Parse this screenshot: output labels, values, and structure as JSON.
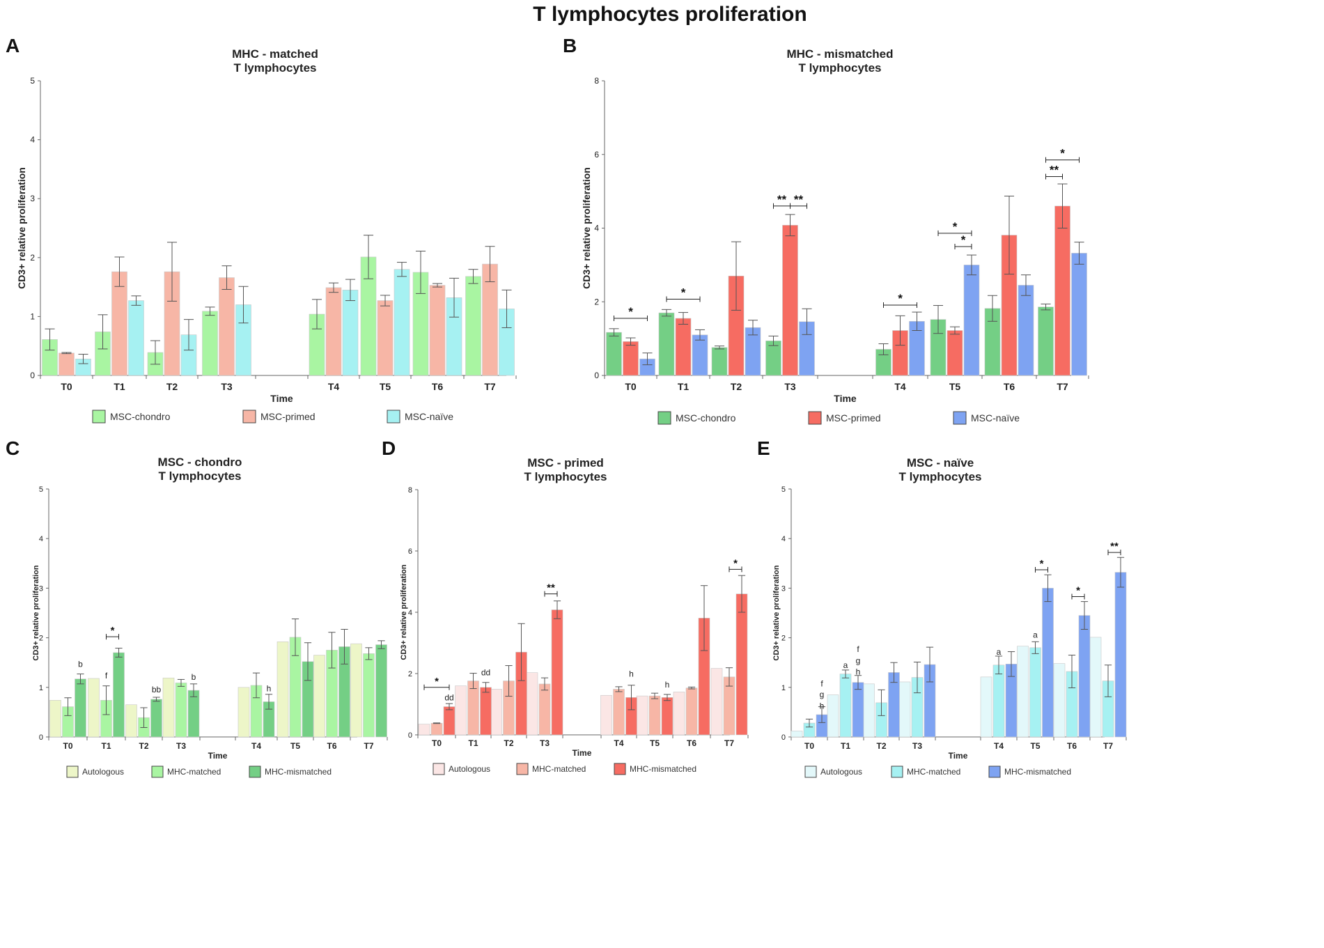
{
  "figure_title": "T lymphocytes proliferation",
  "chart_data": [
    {
      "panel": "A",
      "type": "bar",
      "title": [
        "MHC - matched",
        "T lymphocytes"
      ],
      "xlabel": "Time",
      "ylabel": "CD3+ relative proliferation",
      "ylim": [
        0,
        5
      ],
      "yticks": [
        0,
        1,
        2,
        3,
        4,
        5
      ],
      "categories": [
        "T0",
        "T1",
        "T2",
        "T3",
        "T4",
        "T5",
        "T6",
        "T7"
      ],
      "colors": [
        "#a9f5a2",
        "#f7b6a6",
        "#a6f1f2"
      ],
      "series": [
        {
          "name": "MSC-chondro",
          "values": [
            0.61,
            0.74,
            0.39,
            1.09,
            1.04,
            2.01,
            1.75,
            1.68
          ],
          "errors": [
            0.18,
            0.29,
            0.2,
            0.07,
            0.25,
            0.37,
            0.36,
            0.12
          ]
        },
        {
          "name": "MSC-primed",
          "values": [
            0.38,
            1.76,
            1.76,
            1.66,
            1.49,
            1.27,
            1.53,
            1.89
          ],
          "errors": [
            0.01,
            0.25,
            0.5,
            0.2,
            0.08,
            0.09,
            0.03,
            0.3
          ]
        },
        {
          "name": "MSC-naïve",
          "values": [
            0.28,
            1.27,
            0.69,
            1.2,
            1.45,
            1.8,
            1.32,
            1.13
          ],
          "errors": [
            0.08,
            0.08,
            0.26,
            0.31,
            0.18,
            0.12,
            0.33,
            0.32
          ]
        }
      ],
      "annotations": []
    },
    {
      "panel": "B",
      "type": "bar",
      "title": [
        "MHC - mismatched",
        "T lymphocytes"
      ],
      "xlabel": "Time",
      "ylabel": "CD3+ relative proliferation",
      "ylim": [
        0,
        8
      ],
      "yticks": [
        0,
        2,
        4,
        6,
        8
      ],
      "categories": [
        "T0",
        "T1",
        "T2",
        "T3",
        "T4",
        "T5",
        "T6",
        "T7"
      ],
      "colors": [
        "#74cf85",
        "#f66c62",
        "#7ea3f2"
      ],
      "series": [
        {
          "name": "MSC-chondro",
          "values": [
            1.17,
            1.7,
            0.76,
            0.94,
            0.71,
            1.52,
            1.82,
            1.86
          ],
          "errors": [
            0.1,
            0.09,
            0.04,
            0.13,
            0.15,
            0.38,
            0.35,
            0.08
          ]
        },
        {
          "name": "MSC-primed",
          "values": [
            0.92,
            1.55,
            2.7,
            4.08,
            1.22,
            1.22,
            3.81,
            4.6
          ],
          "errors": [
            0.1,
            0.16,
            0.93,
            0.29,
            0.4,
            0.1,
            1.06,
            0.6
          ]
        },
        {
          "name": "MSC-naïve",
          "values": [
            0.45,
            1.1,
            1.3,
            1.46,
            1.47,
            3.0,
            2.45,
            3.32
          ],
          "errors": [
            0.16,
            0.14,
            0.2,
            0.35,
            0.25,
            0.27,
            0.28,
            0.3
          ]
        }
      ],
      "annotations": [
        {
          "label": "*",
          "from": [
            0,
            0
          ],
          "to": [
            0,
            2
          ],
          "y": 1.55
        },
        {
          "label": "*",
          "from": [
            1,
            0
          ],
          "to": [
            1,
            2
          ],
          "y": 2.07
        },
        {
          "label": "**",
          "from": [
            3,
            0
          ],
          "to": [
            3,
            1
          ],
          "y": 4.6
        },
        {
          "label": "**",
          "from": [
            3,
            1
          ],
          "to": [
            3,
            2
          ],
          "y": 4.6
        },
        {
          "label": "*",
          "from": [
            4,
            0
          ],
          "to": [
            4,
            2
          ],
          "y": 1.91
        },
        {
          "label": "*",
          "from": [
            5,
            0
          ],
          "to": [
            5,
            2
          ],
          "y": 3.86
        },
        {
          "label": "*",
          "from": [
            5,
            1
          ],
          "to": [
            5,
            2
          ],
          "y": 3.5
        },
        {
          "label": "**",
          "from": [
            7,
            0
          ],
          "to": [
            7,
            1
          ],
          "y": 5.4
        },
        {
          "label": "*",
          "from": [
            7,
            0
          ],
          "to": [
            7,
            2
          ],
          "y": 5.85
        }
      ]
    },
    {
      "panel": "C",
      "type": "bar",
      "title": [
        "MSC - chondro",
        "T lymphocytes"
      ],
      "xlabel": "Time",
      "ylabel": "CD3+ relative proliferation",
      "ylim": [
        0,
        5
      ],
      "yticks": [
        0,
        1,
        2,
        3,
        4,
        5
      ],
      "categories": [
        "T0",
        "T1",
        "T2",
        "T3",
        "T4",
        "T5",
        "T6",
        "T7"
      ],
      "colors": [
        "#edf6c8",
        "#a9f5a2",
        "#74cf85"
      ],
      "series": [
        {
          "name": "Autologous",
          "values": [
            0.74,
            1.18,
            0.65,
            1.19,
            1.0,
            1.92,
            1.65,
            1.88
          ],
          "errors": [
            0,
            0,
            0,
            0,
            0,
            0,
            0,
            0
          ]
        },
        {
          "name": "MHC-matched",
          "values": [
            0.61,
            0.74,
            0.39,
            1.09,
            1.04,
            2.01,
            1.75,
            1.68
          ],
          "errors": [
            0.18,
            0.29,
            0.2,
            0.07,
            0.25,
            0.37,
            0.36,
            0.12
          ]
        },
        {
          "name": "MHC-mismatched",
          "values": [
            1.17,
            1.7,
            0.76,
            0.94,
            0.71,
            1.52,
            1.82,
            1.86
          ],
          "errors": [
            0.1,
            0.09,
            0.04,
            0.13,
            0.15,
            0.38,
            0.35,
            0.08
          ]
        }
      ],
      "annotations": [
        {
          "label": "*",
          "from": [
            1,
            1
          ],
          "to": [
            1,
            2
          ],
          "y": 2.02
        },
        {
          "type": "text",
          "label": "b",
          "cat": 0,
          "ser": 2,
          "y": 1.41
        },
        {
          "type": "text",
          "label": "f",
          "cat": 1,
          "ser": 1,
          "y": 1.18
        },
        {
          "type": "text",
          "label": "bb",
          "cat": 2,
          "ser": 2,
          "y": 0.9
        },
        {
          "type": "text",
          "label": "b",
          "cat": 3,
          "ser": 2,
          "y": 1.15
        },
        {
          "type": "text",
          "label": "h",
          "cat": 4,
          "ser": 2,
          "y": 0.92
        }
      ]
    },
    {
      "panel": "D",
      "type": "bar",
      "title": [
        "MSC - primed",
        "T lymphocytes"
      ],
      "xlabel": "Time",
      "ylabel": "CD3+ relative proliferation",
      "ylim": [
        0,
        8
      ],
      "yticks": [
        0,
        2,
        4,
        6,
        8
      ],
      "categories": [
        "T0",
        "T1",
        "T2",
        "T3",
        "T4",
        "T5",
        "T6",
        "T7"
      ],
      "colors": [
        "#fbe6e5",
        "#f7b6a6",
        "#f66c62"
      ],
      "series": [
        {
          "name": "Autologous",
          "values": [
            0.35,
            1.6,
            1.49,
            2.03,
            1.29,
            1.27,
            1.4,
            2.17
          ],
          "errors": [
            0,
            0,
            0,
            0,
            0,
            0,
            0,
            0
          ]
        },
        {
          "name": "MHC-matched",
          "values": [
            0.38,
            1.76,
            1.76,
            1.66,
            1.49,
            1.27,
            1.53,
            1.89
          ],
          "errors": [
            0.01,
            0.25,
            0.5,
            0.2,
            0.08,
            0.09,
            0.03,
            0.3
          ]
        },
        {
          "name": "MHC-mismatched",
          "values": [
            0.92,
            1.55,
            2.7,
            4.08,
            1.22,
            1.22,
            3.81,
            4.6
          ],
          "errors": [
            0.1,
            0.16,
            0.93,
            0.29,
            0.4,
            0.1,
            1.06,
            0.6
          ]
        }
      ],
      "annotations": [
        {
          "label": "*",
          "from": [
            0,
            0
          ],
          "to": [
            0,
            2
          ],
          "y": 1.55
        },
        {
          "label": "**",
          "from": [
            3,
            1
          ],
          "to": [
            3,
            2
          ],
          "y": 4.6
        },
        {
          "label": "*",
          "from": [
            7,
            1
          ],
          "to": [
            7,
            2
          ],
          "y": 5.4
        },
        {
          "type": "text",
          "label": "dd",
          "cat": 0,
          "ser": 2,
          "y": 1.13
        },
        {
          "type": "text",
          "label": "dd",
          "cat": 1,
          "ser": 2,
          "y": 1.94
        },
        {
          "type": "text",
          "label": "h",
          "cat": 4,
          "ser": 2,
          "y": 1.9
        },
        {
          "type": "text",
          "label": "h",
          "cat": 5,
          "ser": 2,
          "y": 1.55
        }
      ]
    },
    {
      "panel": "E",
      "type": "bar",
      "title": [
        "MSC - naïve",
        "T lymphocytes"
      ],
      "xlabel": "Time",
      "ylabel": "CD3+ relative proliferation",
      "ylim": [
        0,
        5
      ],
      "yticks": [
        0,
        1,
        2,
        3,
        4,
        5
      ],
      "categories": [
        "T0",
        "T1",
        "T2",
        "T3",
        "T4",
        "T5",
        "T6",
        "T7"
      ],
      "colors": [
        "#e3f8fa",
        "#a6f1f2",
        "#7ea3f2"
      ],
      "series": [
        {
          "name": "Autologous",
          "values": [
            0.12,
            0.85,
            1.07,
            1.11,
            1.21,
            1.83,
            1.48,
            2.01
          ],
          "errors": [
            0,
            0,
            0,
            0,
            0,
            0,
            0,
            0
          ]
        },
        {
          "name": "MHC-matched",
          "values": [
            0.28,
            1.27,
            0.69,
            1.2,
            1.45,
            1.8,
            1.32,
            1.13
          ],
          "errors": [
            0.08,
            0.08,
            0.26,
            0.31,
            0.18,
            0.12,
            0.33,
            0.32
          ]
        },
        {
          "name": "MHC-mismatched",
          "values": [
            0.45,
            1.1,
            1.3,
            1.46,
            1.47,
            3.0,
            2.45,
            3.32
          ],
          "errors": [
            0.16,
            0.14,
            0.2,
            0.35,
            0.25,
            0.27,
            0.28,
            0.3
          ]
        }
      ],
      "annotations": [
        {
          "label": "*",
          "from": [
            5,
            1
          ],
          "to": [
            5,
            2
          ],
          "y": 3.37
        },
        {
          "label": "*",
          "from": [
            6,
            1
          ],
          "to": [
            6,
            2
          ],
          "y": 2.83
        },
        {
          "label": "**",
          "from": [
            7,
            1
          ],
          "to": [
            7,
            2
          ],
          "y": 3.72
        },
        {
          "type": "text",
          "label": "f",
          "cat": 0,
          "ser": 2,
          "y": 1.02
        },
        {
          "type": "text",
          "label": "g",
          "cat": 0,
          "ser": 2,
          "y": 0.8
        },
        {
          "type": "text",
          "label": "h",
          "cat": 0,
          "ser": 2,
          "y": 0.57
        },
        {
          "type": "text",
          "label": "a",
          "cat": 1,
          "ser": 1,
          "y": 1.39
        },
        {
          "type": "text",
          "label": "f",
          "cat": 1,
          "ser": 2,
          "y": 1.71
        },
        {
          "type": "text",
          "label": "g",
          "cat": 1,
          "ser": 2,
          "y": 1.48
        },
        {
          "type": "text",
          "label": "h",
          "cat": 1,
          "ser": 2,
          "y": 1.26
        },
        {
          "type": "text",
          "label": "a",
          "cat": 4,
          "ser": 1,
          "y": 1.66
        },
        {
          "type": "text",
          "label": "a",
          "cat": 5,
          "ser": 1,
          "y": 2.0
        }
      ]
    }
  ]
}
